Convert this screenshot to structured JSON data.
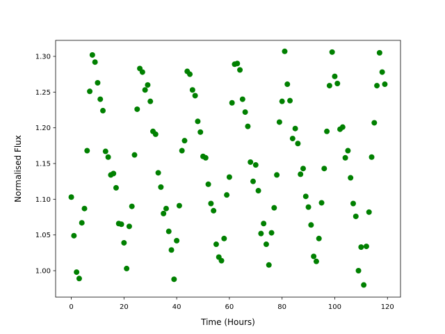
{
  "chart_data": {
    "type": "scatter",
    "x_label": "Time (Hours)",
    "y_label": "Normalised Flux",
    "x": [
      0,
      1,
      2,
      3,
      4,
      5,
      6,
      7,
      8,
      9,
      10,
      11,
      12,
      13,
      14,
      15,
      16,
      17,
      18,
      19,
      20,
      21,
      22,
      23,
      24,
      25,
      26,
      27,
      28,
      29,
      30,
      31,
      32,
      33,
      34,
      35,
      36,
      37,
      38,
      39,
      40,
      41,
      42,
      43,
      44,
      45,
      46,
      47,
      48,
      49,
      50,
      51,
      52,
      53,
      54,
      55,
      56,
      57,
      58,
      59,
      60,
      61,
      62,
      63,
      64,
      65,
      66,
      67,
      68,
      69,
      70,
      71,
      72,
      73,
      74,
      75,
      76,
      77,
      78,
      79,
      80,
      81,
      82,
      83,
      84,
      85,
      86,
      87,
      88,
      89,
      90,
      91,
      92,
      93,
      94,
      95,
      96,
      97,
      98,
      99,
      100,
      101,
      102,
      103,
      104,
      105,
      106,
      107,
      108,
      109,
      110,
      111,
      112,
      113,
      114,
      115,
      116,
      117,
      118,
      119
    ],
    "series": [
      {
        "color": "#008000",
        "values": [
          1.103,
          1.049,
          0.998,
          0.989,
          1.067,
          1.087,
          1.168,
          1.251,
          1.302,
          1.292,
          1.263,
          1.24,
          1.224,
          1.167,
          1.159,
          1.134,
          1.136,
          1.116,
          1.066,
          1.065,
          1.039,
          1.003,
          1.062,
          1.09,
          1.162,
          1.226,
          1.283,
          1.278,
          1.253,
          1.26,
          1.237,
          1.195,
          1.191,
          1.137,
          1.117,
          1.08,
          1.087,
          1.055,
          1.029,
          0.988,
          1.042,
          1.091,
          1.168,
          1.182,
          1.279,
          1.275,
          1.253,
          1.245,
          1.209,
          1.194,
          1.16,
          1.158,
          1.121,
          1.094,
          1.084,
          1.037,
          1.019,
          1.014,
          1.045,
          1.106,
          1.131,
          1.235,
          1.289,
          1.29,
          1.281,
          1.24,
          1.222,
          1.202,
          1.152,
          1.125,
          1.148,
          1.112,
          1.052,
          1.066,
          1.037,
          1.008,
          1.053,
          1.088,
          1.134,
          1.208,
          1.237,
          1.307,
          1.261,
          1.238,
          1.185,
          1.199,
          1.178,
          1.135,
          1.143,
          1.104,
          1.089,
          1.064,
          1.02,
          1.013,
          1.045,
          1.095,
          1.143,
          1.195,
          1.259,
          1.306,
          1.272,
          1.262,
          1.198,
          1.201,
          1.158,
          1.168,
          1.13,
          1.094,
          1.076,
          1.0,
          1.033,
          0.98,
          1.034,
          1.082,
          1.159,
          1.207,
          1.259,
          1.305,
          1.278,
          1.261
        ]
      }
    ],
    "xlim": [
      -5.95,
      124.95
    ],
    "xticks": [
      0,
      20,
      40,
      60,
      80,
      100,
      120
    ],
    "ylim": [
      0.963,
      1.3224
    ],
    "yticks": [
      {
        "value": 1.0,
        "label": "1.00"
      },
      {
        "value": 1.05,
        "label": "1.05"
      },
      {
        "value": 1.1,
        "label": "1.10"
      },
      {
        "value": 1.15,
        "label": "1.15"
      },
      {
        "value": 1.2,
        "label": "1.20"
      },
      {
        "value": 1.25,
        "label": "1.25"
      },
      {
        "value": 1.3,
        "label": "1.30"
      }
    ],
    "grid": false
  }
}
